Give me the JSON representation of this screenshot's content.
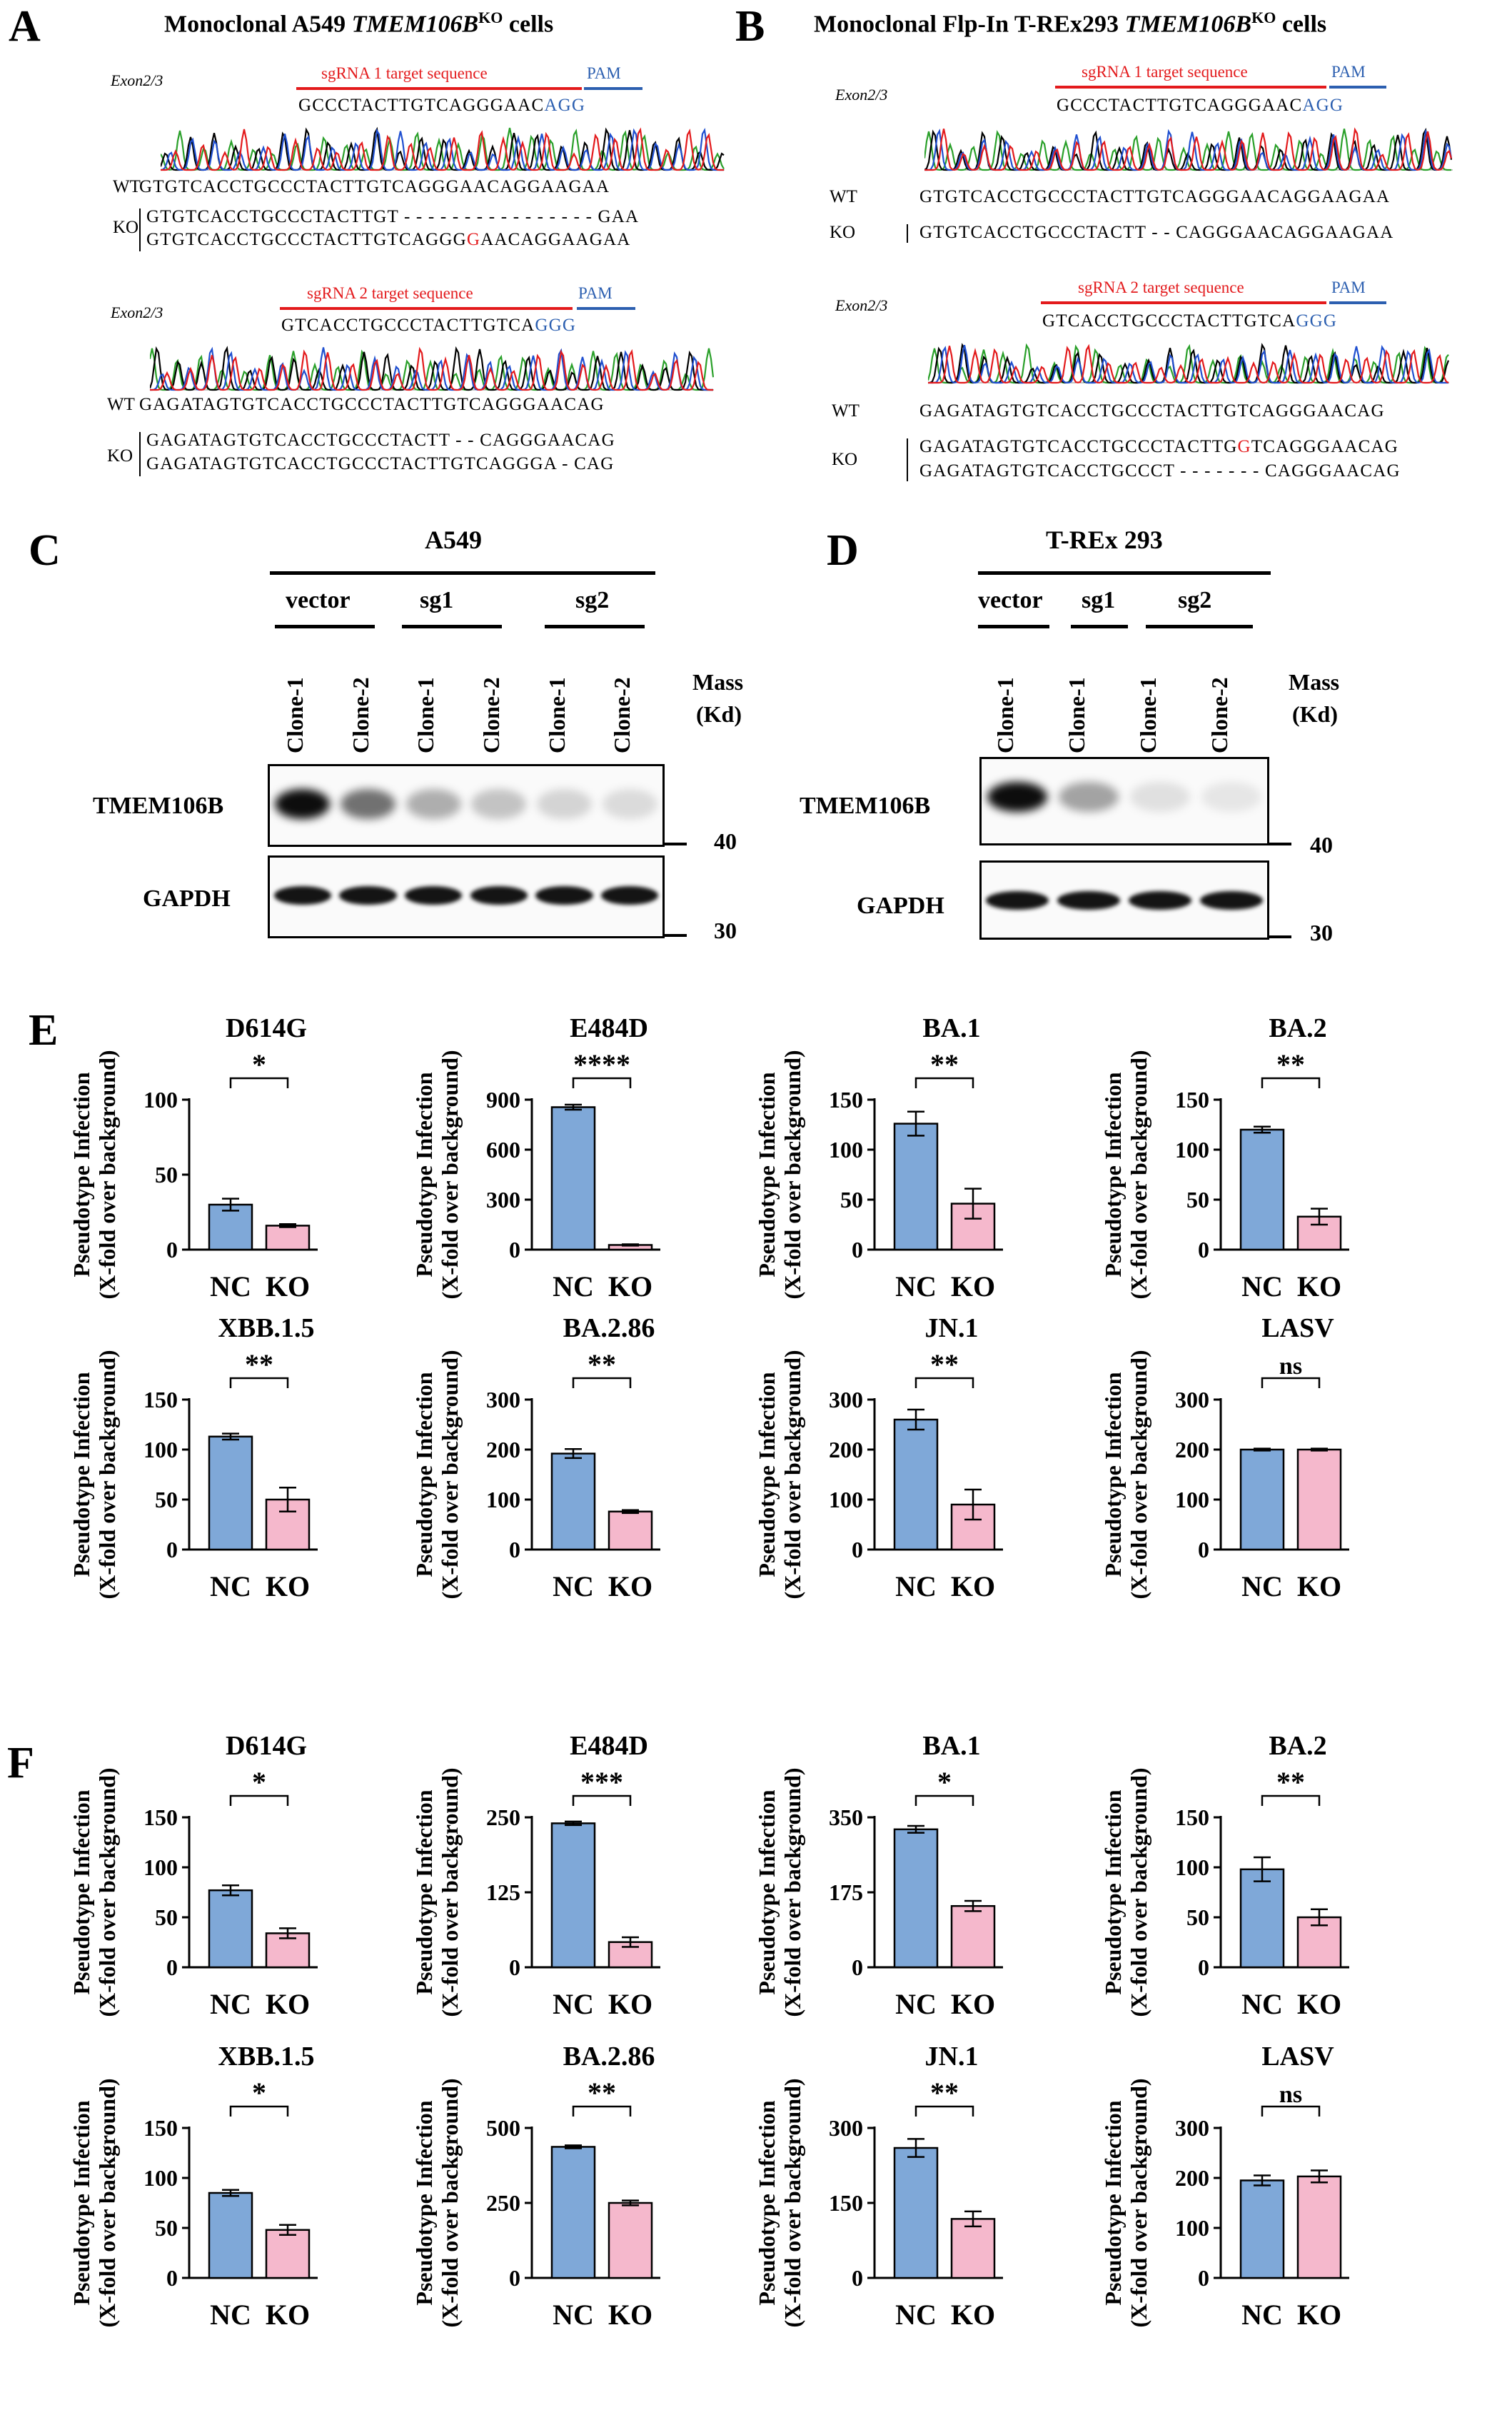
{
  "panels": {
    "A": {
      "letter": "A",
      "title_pre": "Monoclonal A549 ",
      "title_gene": "TMEM106B",
      "title_sup": "KO",
      "title_post": " cells"
    },
    "B": {
      "letter": "B",
      "title_pre": "Monoclonal  Flp-In T-REx293 ",
      "title_gene": "TMEM106B",
      "title_sup": "KO",
      "title_post": " cells"
    },
    "C": {
      "letter": "C"
    },
    "D": {
      "letter": "D"
    },
    "E": {
      "letter": "E"
    },
    "F": {
      "letter": "F"
    }
  },
  "sequencing": {
    "exon_label": "Exon2/3",
    "sg1_label": "sgRNA 1 target sequence",
    "sg2_label": "sgRNA 2 target sequence",
    "pam_label": "PAM",
    "wt": "WT",
    "ko": "KO",
    "A_sg1": {
      "target": "GCCCTACTTGTCAGGGAAC",
      "pam": "AGG",
      "wt": "GTGTCACCTGCCCTACTTGTCAGGGAACAGGAAGAA",
      "ko1": "GTGTCACCTGCCCTACTTGT - - - - - - - - - - - - - - - - GAA",
      "ko2_a": "GTGTCACCTGCCCTACTTGTCAGGG",
      "ko2_mut": "G",
      "ko2_b": "AACAGGAAGAA"
    },
    "A_sg2": {
      "target": "GTCACCTGCCCTACTTGTCA",
      "pam": "GGG",
      "wt": "GAGATAGTGTCACCTGCCCTACTTGTCAGGGAACAG",
      "ko1": "GAGATAGTGTCACCTGCCCTACTT - - CAGGGAACAG",
      "ko2": "GAGATAGTGTCACCTGCCCTACTTGTCAGGGA - CAG"
    },
    "B_sg1": {
      "target": "GCCCTACTTGTCAGGGAAC",
      "pam": "AGG",
      "wt": "GTGTCACCTGCCCTACTTGTCAGGGAACAGGAAGAA",
      "ko1": "GTGTCACCTGCCCTACTT - - CAGGGAACAGGAAGAA"
    },
    "B_sg2": {
      "target": "GTCACCTGCCCTACTTGTCA",
      "pam": "GGG",
      "wt": "GAGATAGTGTCACCTGCCCTACTTGTCAGGGAACAG",
      "ko1_a": "GAGATAGTGTCACCTGCCCTACTTG",
      "ko1_mut": "G",
      "ko1_b": "TCAGGGAACAG",
      "ko2": "GAGATAGTGTCACCTGCCCT - - - - - - - CAGGGAACAG"
    }
  },
  "western": {
    "C": {
      "cell": "A549",
      "groups": [
        "vector",
        "sg1",
        "sg2"
      ],
      "lanes": [
        "Clone-1",
        "Clone-2",
        "Clone-1",
        "Clone-2",
        "Clone-1",
        "Clone-2"
      ],
      "tmem_intensity": [
        0.95,
        0.55,
        0.3,
        0.22,
        0.15,
        0.12
      ]
    },
    "D": {
      "cell": "T-REx 293",
      "groups": [
        "vector",
        "sg1",
        "sg2"
      ],
      "lanes": [
        "Clone-1",
        "Clone-1",
        "Clone-1",
        "Clone-2"
      ],
      "tmem_intensity": [
        0.95,
        0.35,
        0.1,
        0.08
      ]
    },
    "protein1": "TMEM106B",
    "protein2": "GAPDH",
    "mass_label": "Mass",
    "mass_unit": "(Kd)",
    "m40": "40",
    "m30": "30"
  },
  "ylabel1": "Pseudotype Infection",
  "ylabel2": "(X-fold over background)",
  "colors": {
    "nc": "#7fa8d8",
    "ko": "#f5b8cc"
  },
  "chart_data": [
    {
      "panel": "E",
      "title": "D614G",
      "type": "bar",
      "categories": [
        "NC",
        "KO"
      ],
      "values": [
        30,
        16
      ],
      "errors": [
        4,
        1
      ],
      "sig": "*",
      "ylim": [
        0,
        100
      ],
      "ticks": [
        0,
        50,
        100
      ]
    },
    {
      "panel": "E",
      "title": "E484D",
      "type": "bar",
      "categories": [
        "NC",
        "KO"
      ],
      "values": [
        855,
        28
      ],
      "errors": [
        15,
        4
      ],
      "sig": "****",
      "ylim": [
        0,
        900
      ],
      "ticks": [
        0,
        300,
        600,
        900
      ]
    },
    {
      "panel": "E",
      "title": "BA.1",
      "type": "bar",
      "categories": [
        "NC",
        "KO"
      ],
      "values": [
        126,
        46
      ],
      "errors": [
        12,
        15
      ],
      "sig": "**",
      "ylim": [
        0,
        150
      ],
      "ticks": [
        0,
        50,
        100,
        150
      ]
    },
    {
      "panel": "E",
      "title": "BA.2",
      "type": "bar",
      "categories": [
        "NC",
        "KO"
      ],
      "values": [
        120,
        33
      ],
      "errors": [
        3,
        8
      ],
      "sig": "**",
      "ylim": [
        0,
        150
      ],
      "ticks": [
        0,
        50,
        100,
        150
      ]
    },
    {
      "panel": "E",
      "title": "XBB.1.5",
      "type": "bar",
      "categories": [
        "NC",
        "KO"
      ],
      "values": [
        113,
        50
      ],
      "errors": [
        3,
        12
      ],
      "sig": "**",
      "ylim": [
        0,
        150
      ],
      "ticks": [
        0,
        50,
        100,
        150
      ]
    },
    {
      "panel": "E",
      "title": "BA.2.86",
      "type": "bar",
      "categories": [
        "NC",
        "KO"
      ],
      "values": [
        192,
        76
      ],
      "errors": [
        9,
        3
      ],
      "sig": "**",
      "ylim": [
        0,
        300
      ],
      "ticks": [
        0,
        100,
        200,
        300
      ]
    },
    {
      "panel": "E",
      "title": "JN.1",
      "type": "bar",
      "categories": [
        "NC",
        "KO"
      ],
      "values": [
        260,
        90
      ],
      "errors": [
        20,
        30
      ],
      "sig": "**",
      "ylim": [
        0,
        300
      ],
      "ticks": [
        0,
        100,
        200,
        300
      ]
    },
    {
      "panel": "E",
      "title": "LASV",
      "type": "bar",
      "categories": [
        "NC",
        "KO"
      ],
      "values": [
        200,
        200
      ],
      "errors": [
        2,
        2
      ],
      "sig": "ns",
      "ylim": [
        0,
        300
      ],
      "ticks": [
        0,
        100,
        200,
        300
      ]
    },
    {
      "panel": "F",
      "title": "D614G",
      "type": "bar",
      "categories": [
        "NC",
        "KO"
      ],
      "values": [
        77,
        34
      ],
      "errors": [
        5,
        5
      ],
      "sig": "*",
      "ylim": [
        0,
        150
      ],
      "ticks": [
        0,
        50,
        100,
        150
      ]
    },
    {
      "panel": "F",
      "title": "E484D",
      "type": "bar",
      "categories": [
        "NC",
        "KO"
      ],
      "values": [
        240,
        42
      ],
      "errors": [
        3,
        8
      ],
      "sig": "***",
      "ylim": [
        0,
        250
      ],
      "ticks": [
        0,
        125,
        250
      ]
    },
    {
      "panel": "F",
      "title": "BA.1",
      "type": "bar",
      "categories": [
        "NC",
        "KO"
      ],
      "values": [
        322,
        143
      ],
      "errors": [
        8,
        12
      ],
      "sig": "*",
      "ylim": [
        0,
        350
      ],
      "ticks": [
        0,
        175,
        350
      ]
    },
    {
      "panel": "F",
      "title": "BA.2",
      "type": "bar",
      "categories": [
        "NC",
        "KO"
      ],
      "values": [
        98,
        50
      ],
      "errors": [
        12,
        8
      ],
      "sig": "**",
      "ylim": [
        0,
        150
      ],
      "ticks": [
        0,
        50,
        100,
        150
      ]
    },
    {
      "panel": "F",
      "title": "XBB.1.5",
      "type": "bar",
      "categories": [
        "NC",
        "KO"
      ],
      "values": [
        85,
        48
      ],
      "errors": [
        3,
        5
      ],
      "sig": "*",
      "ylim": [
        0,
        150
      ],
      "ticks": [
        0,
        50,
        100,
        150
      ]
    },
    {
      "panel": "F",
      "title": "BA.2.86",
      "type": "bar",
      "categories": [
        "NC",
        "KO"
      ],
      "values": [
        437,
        250
      ],
      "errors": [
        5,
        8
      ],
      "sig": "**",
      "ylim": [
        0,
        500
      ],
      "ticks": [
        0,
        250,
        500
      ]
    },
    {
      "panel": "F",
      "title": "JN.1",
      "type": "bar",
      "categories": [
        "NC",
        "KO"
      ],
      "values": [
        260,
        118
      ],
      "errors": [
        18,
        15
      ],
      "sig": "**",
      "ylim": [
        0,
        300
      ],
      "ticks": [
        0,
        150,
        300
      ]
    },
    {
      "panel": "F",
      "title": "LASV",
      "type": "bar",
      "categories": [
        "NC",
        "KO"
      ],
      "values": [
        195,
        203
      ],
      "errors": [
        10,
        12
      ],
      "sig": "ns",
      "ylim": [
        0,
        300
      ],
      "ticks": [
        0,
        100,
        200,
        300
      ]
    }
  ]
}
